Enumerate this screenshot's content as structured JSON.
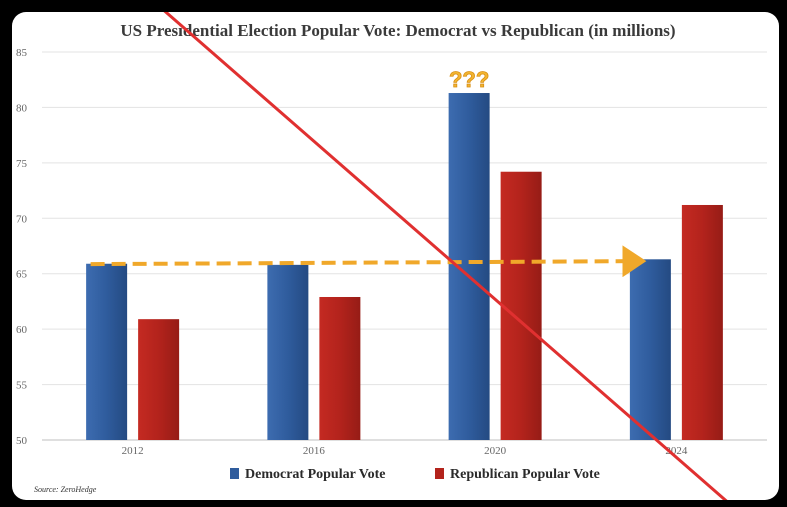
{
  "chart_data": {
    "type": "bar",
    "title": "US Presidential Election Popular Vote: Democrat vs Republican (in millions)",
    "categories": [
      "2012",
      "2016",
      "2020",
      "2024"
    ],
    "series": [
      {
        "name": "Democrat Popular Vote",
        "values": [
          65.9,
          65.8,
          81.3,
          66.3
        ],
        "color": "#2f5c9d"
      },
      {
        "name": "Republican Popular Vote",
        "values": [
          60.9,
          62.9,
          74.2,
          71.2
        ],
        "color": "#b3231c"
      }
    ],
    "ylim": [
      50,
      85
    ],
    "yticks": [
      50,
      55,
      60,
      65,
      70,
      75,
      80,
      85
    ],
    "grid": true,
    "legend_position": "bottom",
    "annotation_text": "???",
    "trend_arrow": {
      "color": "#f0a82a",
      "from_category": "2012",
      "to_category": "2024",
      "value": 66
    },
    "strike_line_color": "#e03030",
    "source": "Source: ZeroHedge"
  }
}
